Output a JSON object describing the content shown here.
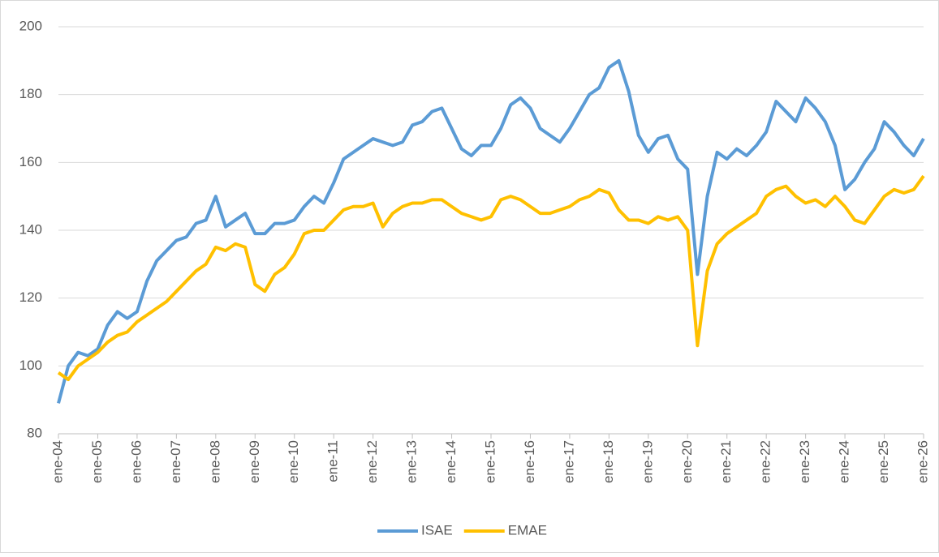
{
  "chart_data": {
    "type": "line",
    "categories": [
      "ene-04",
      null,
      null,
      null,
      "ene-05",
      null,
      null,
      null,
      "ene-06",
      null,
      null,
      null,
      "ene-07",
      null,
      null,
      null,
      "ene-08",
      null,
      null,
      null,
      "ene-09",
      null,
      null,
      null,
      "ene-10",
      null,
      null,
      null,
      "ene-11",
      null,
      null,
      null,
      "ene-12",
      null,
      null,
      null,
      "ene-13",
      null,
      null,
      null,
      "ene-14",
      null,
      null,
      null,
      "ene-15",
      null,
      null,
      null,
      "ene-16",
      null,
      null,
      null,
      "ene-17",
      null,
      null,
      null,
      "ene-18",
      null,
      null,
      null,
      "ene-19",
      null,
      null,
      null,
      "ene-20",
      null,
      null,
      null,
      "ene-21",
      null,
      null,
      null,
      "ene-22",
      null,
      null,
      null,
      "ene-23",
      null,
      null,
      null,
      "ene-24",
      null,
      null,
      null,
      "ene-25",
      null,
      null,
      null,
      "ene-26"
    ],
    "series": [
      {
        "name": "ISAE",
        "color": "#5b9bd5",
        "values": [
          89,
          100,
          104,
          103,
          105,
          112,
          116,
          114,
          116,
          125,
          131,
          134,
          137,
          138,
          142,
          143,
          150,
          141,
          143,
          145,
          139,
          139,
          142,
          142,
          143,
          147,
          150,
          148,
          154,
          161,
          163,
          165,
          167,
          166,
          165,
          166,
          171,
          172,
          175,
          176,
          170,
          164,
          162,
          165,
          165,
          170,
          177,
          179,
          176,
          170,
          168,
          166,
          170,
          175,
          180,
          182,
          188,
          190,
          181,
          168,
          163,
          167,
          168,
          161,
          158,
          127,
          150,
          163,
          161,
          164,
          162,
          165,
          169,
          178,
          175,
          172,
          179,
          176,
          172,
          165,
          152,
          155,
          160,
          164,
          172,
          169,
          165,
          162,
          167
        ]
      },
      {
        "name": "EMAE",
        "color": "#ffc000",
        "values": [
          98,
          96,
          100,
          102,
          104,
          107,
          109,
          110,
          113,
          115,
          117,
          119,
          122,
          125,
          128,
          130,
          135,
          134,
          136,
          135,
          124,
          122,
          127,
          129,
          133,
          139,
          140,
          140,
          143,
          146,
          147,
          147,
          148,
          141,
          145,
          147,
          148,
          148,
          149,
          149,
          147,
          145,
          144,
          143,
          144,
          149,
          150,
          149,
          147,
          145,
          145,
          146,
          147,
          149,
          150,
          152,
          151,
          146,
          143,
          143,
          142,
          144,
          143,
          144,
          140,
          106,
          128,
          136,
          139,
          141,
          143,
          145,
          150,
          152,
          153,
          150,
          148,
          149,
          147,
          150,
          147,
          143,
          142,
          146,
          150,
          152,
          151,
          152,
          156
        ]
      }
    ],
    "ylim": [
      80,
      200
    ],
    "yticks": [
      80,
      100,
      120,
      140,
      160,
      180,
      200
    ],
    "grid": true,
    "legend": "bottom"
  }
}
